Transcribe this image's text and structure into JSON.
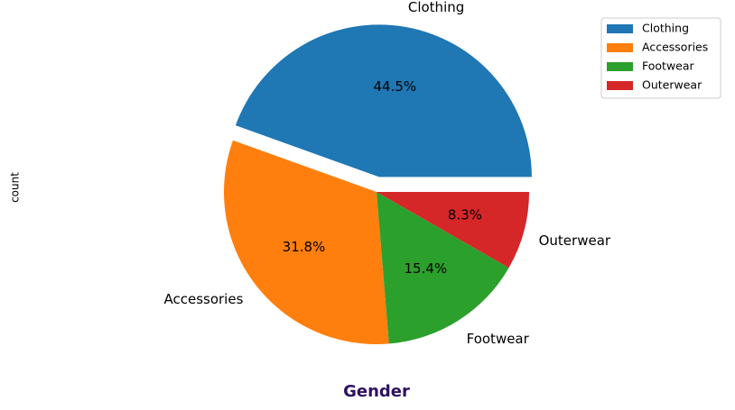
{
  "chart_data": {
    "type": "pie",
    "categories": [
      "Clothing",
      "Accessories",
      "Footwear",
      "Outerwear"
    ],
    "values": [
      44.5,
      31.8,
      15.4,
      8.3
    ],
    "value_labels": [
      "44.5%",
      "31.8%",
      "15.4%",
      "8.3%"
    ],
    "colors": [
      "#1f77b4",
      "#ff7f0e",
      "#2ca02c",
      "#d62728"
    ],
    "explode": [
      0.1,
      0,
      0,
      0
    ],
    "start_angle": 0,
    "legend": {
      "entries": [
        "Clothing",
        "Accessories",
        "Footwear",
        "Outerwear"
      ],
      "placement": "top-right"
    },
    "ylabel": "count",
    "xlabel": "Gender",
    "xlabel_color": "#2e1161"
  }
}
